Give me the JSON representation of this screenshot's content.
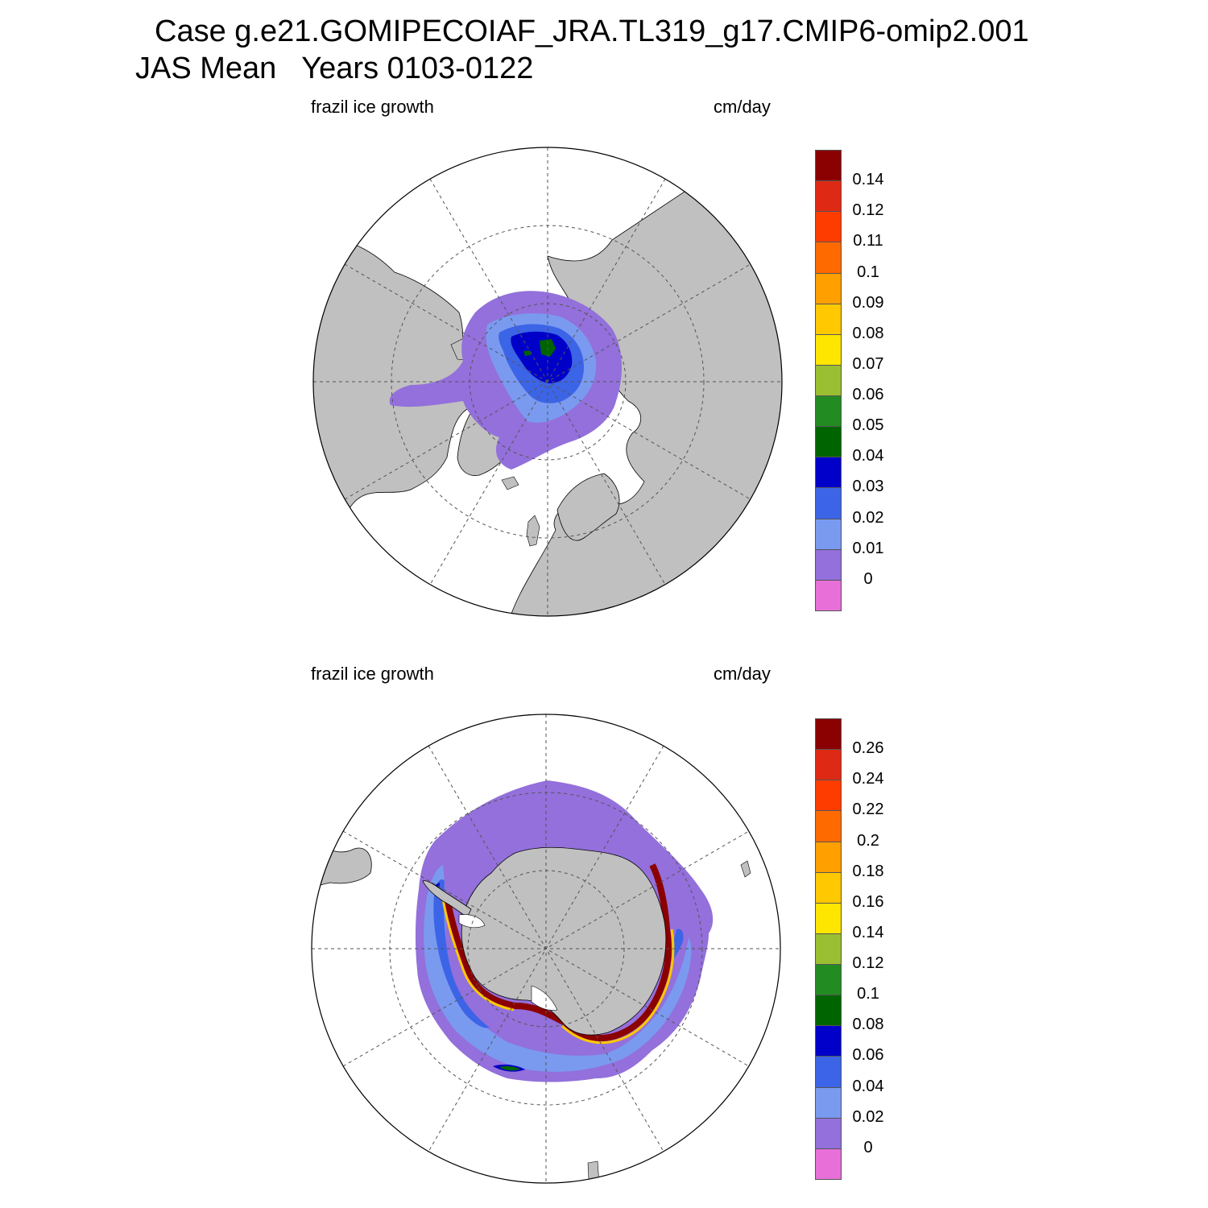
{
  "title": {
    "line1": "Case g.e21.GOMIPECOIAF_JRA.TL319_g17.CMIP6-omip2.001",
    "line2": "JAS Mean   Years 0103-0122"
  },
  "colors": {
    "land": "#c0c0c0",
    "ocean": "#ffffff",
    "grid": "#555555"
  },
  "palette": [
    "#e670d8",
    "#9370db",
    "#7a9af0",
    "#3c64e6",
    "#0000c8",
    "#006400",
    "#228b22",
    "#9abf32",
    "#ffe600",
    "#ffc800",
    "#ffa000",
    "#ff6a00",
    "#ff3c00",
    "#de2a14",
    "#8b0000"
  ],
  "panels": [
    {
      "id": "north",
      "left_label": "frazil ice growth",
      "right_label": "cm/day",
      "colorbar_labels": [
        "0.14",
        "0.12",
        "0.11",
        "0.1",
        "0.09",
        "0.08",
        "0.07",
        "0.06",
        "0.05",
        "0.04",
        "0.03",
        "0.02",
        "0.01",
        "0"
      ]
    },
    {
      "id": "south",
      "left_label": "frazil ice growth",
      "right_label": "cm/day",
      "colorbar_labels": [
        "0.26",
        "0.24",
        "0.22",
        "0.2",
        "0.18",
        "0.16",
        "0.14",
        "0.12",
        "0.1",
        "0.08",
        "0.06",
        "0.04",
        "0.02",
        "0"
      ]
    }
  ]
}
